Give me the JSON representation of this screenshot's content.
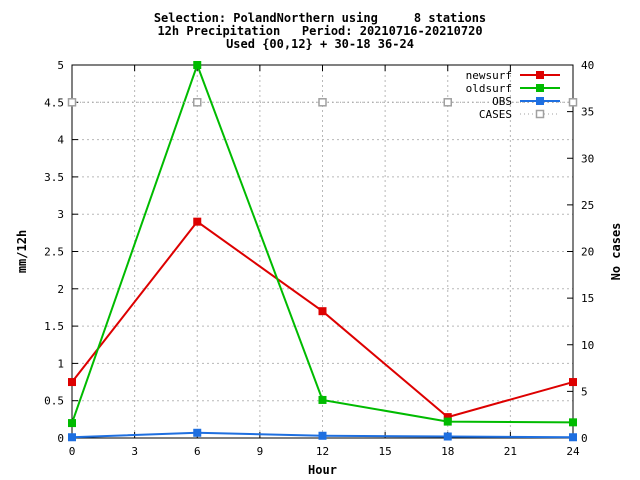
{
  "title_lines": [
    "Selection: PolandNorthern using     8 stations",
    "12h Precipitation   Period: 20210716-20210720",
    "Used {00,12} + 30-18 36-24"
  ],
  "chart_data": {
    "type": "line",
    "xlabel": "Hour",
    "ylabel": "mm/12h",
    "y2label": "No cases",
    "xlim": [
      0,
      24
    ],
    "ylim": [
      0,
      5
    ],
    "y2lim": [
      0,
      40
    ],
    "x_ticks": [
      "0",
      "3",
      "6",
      "9",
      "12",
      "15",
      "18",
      "21",
      "24"
    ],
    "y_ticks": [
      "0",
      "0.5",
      "1",
      "1.5",
      "2",
      "2.5",
      "3",
      "3.5",
      "4",
      "4.5",
      "5"
    ],
    "y2_ticks": [
      "0",
      "5",
      "10",
      "15",
      "20",
      "25",
      "30",
      "35",
      "40"
    ],
    "grid": true,
    "legend_position": "top-right",
    "x": [
      0,
      6,
      12,
      18,
      24
    ],
    "series": [
      {
        "name": "newsurf",
        "axis": "left",
        "color": "#dd0000",
        "marker": "square-filled",
        "values": [
          0.75,
          2.9,
          1.7,
          0.28,
          0.75
        ]
      },
      {
        "name": "oldsurf",
        "axis": "left",
        "color": "#00bb00",
        "marker": "square-filled",
        "values": [
          0.2,
          5.0,
          0.51,
          0.22,
          0.21
        ]
      },
      {
        "name": "OBS",
        "axis": "left",
        "color": "#1e6fe0",
        "marker": "square-filled",
        "values": [
          0.01,
          0.07,
          0.03,
          0.02,
          0.01
        ]
      },
      {
        "name": "CASES",
        "axis": "right",
        "color": "#a0a0a0",
        "marker": "square-open",
        "line": "dotted",
        "values": [
          36,
          36,
          36,
          36,
          36
        ]
      }
    ]
  }
}
